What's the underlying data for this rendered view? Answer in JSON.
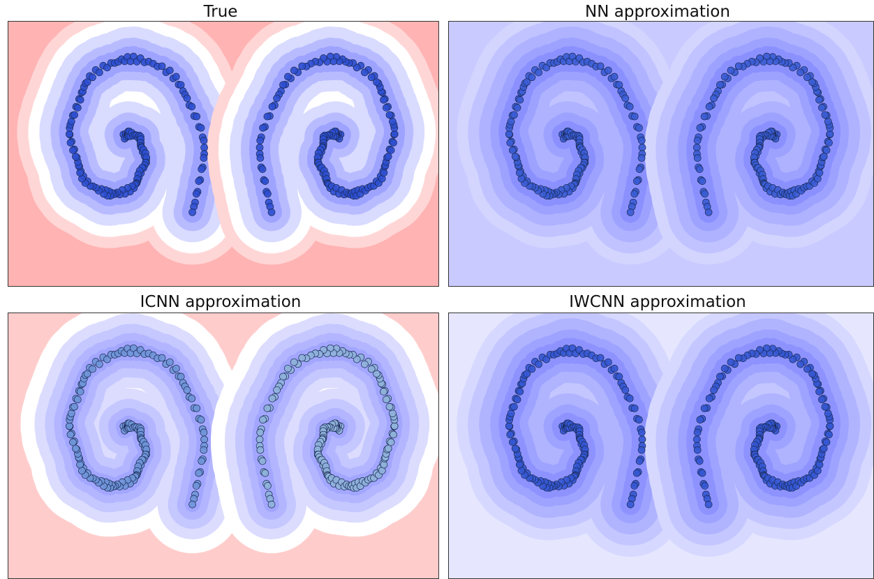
{
  "chart_data": [
    {
      "type": "contour",
      "title": "True"
    },
    {
      "type": "contour",
      "title": "NN approximation"
    },
    {
      "type": "contour",
      "title": "ICNN approximation"
    },
    {
      "type": "contour",
      "title": "IWCNN approximation"
    }
  ]
}
